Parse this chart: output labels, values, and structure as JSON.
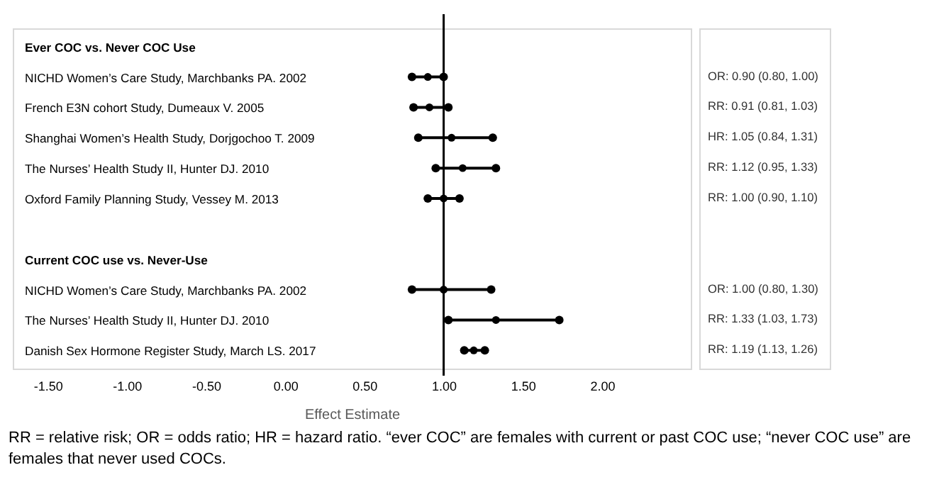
{
  "chart_data": {
    "type": "scatter",
    "orientation": "horizontal",
    "xlabel": "Effect Estimate",
    "categories": [
      "Ever COC vs. Never COC Use",
      "NICHD Women’s Care Study, Marchbanks PA. 2002",
      "French E3N cohort Study, Dumeaux V. 2005",
      "Shanghai Women’s Health Study, Dorjgochoo T. 2009",
      "The Nurses’ Health Study II, Hunter DJ. 2010",
      "Oxford Family Planning Study, Vessey M. 2013",
      null,
      "Current COC use vs. Never-Use",
      "NICHD Women’s Care Study, Marchbanks PA. 2002",
      "The Nurses’ Health Study II, Hunter DJ. 2010",
      "Danish Sex Hormone Register Study, March LS. 2017"
    ],
    "series": [
      {
        "color": "#000000",
        "values": [
          null,
          0.9,
          0.91,
          1.05,
          1.12,
          1.0,
          null,
          null,
          1.0,
          1.33,
          1.19
        ],
        "errors": [
          null,
          [
            0.8,
            1.0
          ],
          [
            0.81,
            1.03
          ],
          [
            0.84,
            1.31
          ],
          [
            0.95,
            1.33
          ],
          [
            0.9,
            1.1
          ],
          null,
          null,
          [
            0.8,
            1.3
          ],
          [
            1.03,
            1.73
          ],
          [
            1.13,
            1.26
          ]
        ],
        "value_labels": [
          null,
          "OR: 0.90 (0.80, 1.00)",
          "RR: 0.91 (0.81, 1.03)",
          "HR: 1.05 (0.84, 1.31)",
          "RR: 1.12 (0.95, 1.33)",
          "RR: 1.00 (0.90, 1.10)",
          null,
          null,
          "OR: 1.00 (0.80, 1.30)",
          "RR: 1.33 (1.03, 1.73)",
          "RR: 1.19 (1.13, 1.26)"
        ]
      }
    ],
    "marker": "circle",
    "xlim": [
      -1.72,
      2.56
    ],
    "xticks": [
      {
        "value": -1.5,
        "label": "-1.50"
      },
      {
        "value": -1,
        "label": "-1.00"
      },
      {
        "value": -0.5,
        "label": "-0.50"
      },
      {
        "value": 0,
        "label": "0.00"
      },
      {
        "value": 0.5,
        "label": "0.50"
      },
      {
        "value": 1,
        "label": "1.00"
      },
      {
        "value": 1.5,
        "label": "1.50"
      },
      {
        "value": 2,
        "label": "2.00"
      }
    ],
    "ref_lines": [
      {
        "axis": "x",
        "value": 1,
        "color": "#000000"
      }
    ],
    "annotations": [
      "RR = relative risk; OR = odds ratio; HR = hazard ratio. “ever COC” are females with current or past COC use; “never COC use” are females that never used COCs."
    ]
  }
}
